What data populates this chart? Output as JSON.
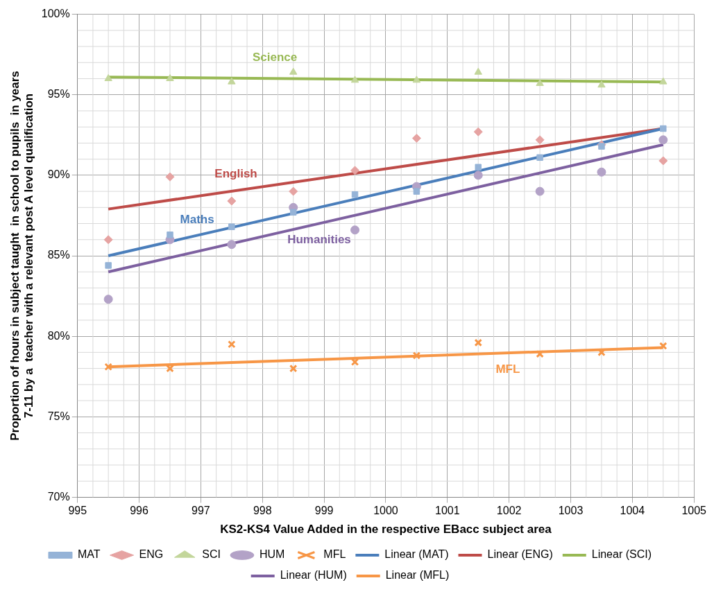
{
  "chart_data": {
    "type": "scatter",
    "xlabel": "KS2-KS4 Value Added in the respective EBacc subject area",
    "ylabel": "Proportion of hours in subject taught  in school to pupils  in years\n7-11 by a  teacher with a relevant post A level qualification",
    "x": [
      995.5,
      996.5,
      997.5,
      998.5,
      999.5,
      1000.5,
      1001.5,
      1002.5,
      1003.5,
      1004.5
    ],
    "series": [
      {
        "name": "MAT",
        "color": "#95b3d7",
        "marker": "square",
        "values": [
          84.4,
          86.3,
          86.8,
          87.7,
          88.8,
          89.0,
          90.5,
          91.1,
          91.8,
          92.9
        ]
      },
      {
        "name": "ENG",
        "color": "#e6a3a2",
        "marker": "diamond",
        "values": [
          86.0,
          89.9,
          88.4,
          89.0,
          90.3,
          92.3,
          92.7,
          92.2,
          91.9,
          90.9
        ]
      },
      {
        "name": "SCI",
        "color": "#c3d69b",
        "marker": "triangle",
        "values": [
          96.0,
          96.0,
          95.8,
          96.4,
          95.9,
          95.9,
          96.4,
          95.7,
          95.6,
          95.8
        ]
      },
      {
        "name": "HUM",
        "color": "#b3a2c7",
        "marker": "circle",
        "values": [
          82.3,
          86.0,
          85.7,
          88.0,
          86.6,
          89.3,
          90.0,
          89.0,
          90.2,
          92.2
        ]
      },
      {
        "name": "MFL",
        "color": "#f79646",
        "marker": "cross",
        "values": [
          78.1,
          78.0,
          79.5,
          78.0,
          78.4,
          78.8,
          79.6,
          78.9,
          79.0,
          79.4
        ]
      },
      {
        "name": "Linear (MAT)",
        "type": "line",
        "color": "#4a7ebb",
        "marker": "none",
        "values": [
          85.0,
          null,
          null,
          null,
          null,
          null,
          null,
          null,
          null,
          92.9
        ]
      },
      {
        "name": "Linear (ENG)",
        "type": "line",
        "color": "#be4b48",
        "marker": "none",
        "values": [
          87.9,
          null,
          null,
          null,
          null,
          null,
          null,
          null,
          null,
          92.9
        ]
      },
      {
        "name": "Linear (SCI)",
        "type": "line",
        "color": "#98b954",
        "marker": "none",
        "values": [
          96.1,
          null,
          null,
          null,
          null,
          null,
          null,
          null,
          null,
          95.8
        ]
      },
      {
        "name": "Linear (HUM)",
        "type": "line",
        "color": "#7d60a0",
        "marker": "none",
        "values": [
          84.0,
          null,
          null,
          null,
          null,
          null,
          null,
          null,
          null,
          91.9
        ]
      },
      {
        "name": "Linear (MFL)",
        "type": "line",
        "color": "#f79646",
        "marker": "none",
        "values": [
          78.1,
          null,
          null,
          null,
          null,
          null,
          null,
          null,
          null,
          79.3
        ]
      }
    ],
    "annotations": [
      "Maths",
      "English",
      "Science",
      "Humanities",
      "MFL"
    ],
    "xlim": [
      995,
      1005
    ],
    "xticks": [
      995,
      996,
      997,
      998,
      999,
      1000,
      1001,
      1002,
      1003,
      1004,
      1005
    ],
    "ylim": [
      70,
      100
    ],
    "yticks": [
      {
        "value": 70,
        "label": "70%"
      },
      {
        "value": 75,
        "label": "75%"
      },
      {
        "value": 80,
        "label": "80%"
      },
      {
        "value": 85,
        "label": "85%"
      },
      {
        "value": 90,
        "label": "90%"
      },
      {
        "value": 95,
        "label": "95%"
      },
      {
        "value": 100,
        "label": "100%"
      }
    ],
    "grid": true,
    "legend": "bottom"
  }
}
